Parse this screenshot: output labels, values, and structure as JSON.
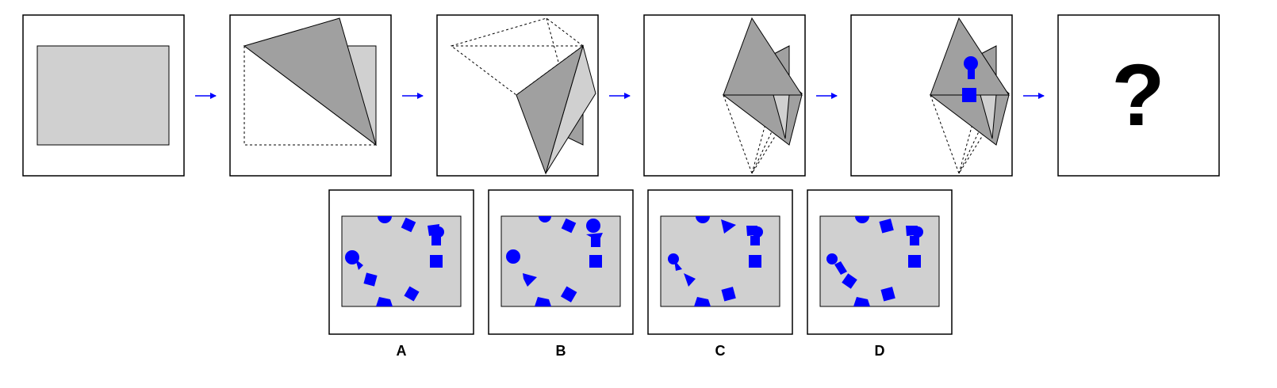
{
  "question_mark": "?",
  "arrow_color": "#0000ff",
  "shape_color": "#0000ff",
  "paper_color": "#d0d0d0",
  "fold_color": "#a0a0a0",
  "options": [
    {
      "label": "A"
    },
    {
      "label": "B"
    },
    {
      "label": "C"
    },
    {
      "label": "D"
    }
  ]
}
